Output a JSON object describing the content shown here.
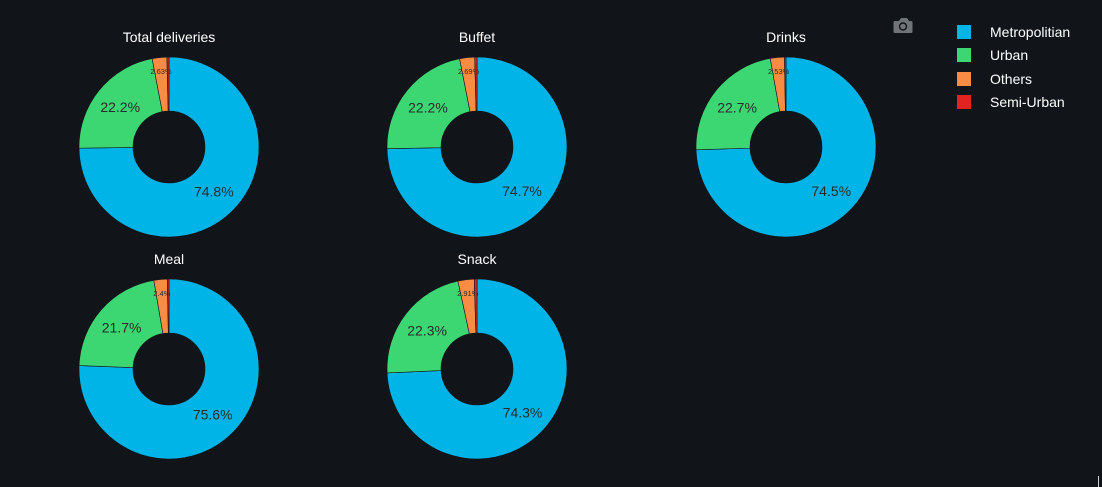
{
  "toolbar": {
    "camera_icon": "camera-icon"
  },
  "legend": [
    {
      "label": "Metropolitian",
      "color": "#00b4e8"
    },
    {
      "label": "Urban",
      "color": "#3cd672"
    },
    {
      "label": "Others",
      "color": "#f98c45"
    },
    {
      "label": "Semi-Urban",
      "color": "#e2231f"
    }
  ],
  "chart_data": {
    "type": "donut",
    "series_names": [
      "Metropolitian",
      "Urban",
      "Others",
      "Semi-Urban"
    ],
    "colors": [
      "#00b4e8",
      "#3cd672",
      "#f98c45",
      "#e2231f"
    ],
    "charts": [
      {
        "title": "Total deliveries",
        "values": [
          74.8,
          22.2,
          2.63,
          0.37
        ],
        "labels": [
          "74.8%",
          "22.2%",
          "2.63%",
          ""
        ]
      },
      {
        "title": "Buffet",
        "values": [
          74.7,
          22.2,
          2.69,
          0.41
        ],
        "labels": [
          "74.7%",
          "22.2%",
          "2.69%",
          ""
        ]
      },
      {
        "title": "Drinks",
        "values": [
          74.5,
          22.7,
          2.53,
          0.27
        ],
        "labels": [
          "74.5%",
          "22.7%",
          "2.53%",
          ""
        ]
      },
      {
        "title": "Meal",
        "values": [
          75.6,
          21.7,
          2.4,
          0.3
        ],
        "labels": [
          "75.6%",
          "21.7%",
          "2.4%",
          ""
        ]
      },
      {
        "title": "Snack",
        "values": [
          74.3,
          22.3,
          2.91,
          0.49
        ],
        "labels": [
          "74.3%",
          "22.3%",
          "2.91%",
          ""
        ]
      }
    ]
  }
}
